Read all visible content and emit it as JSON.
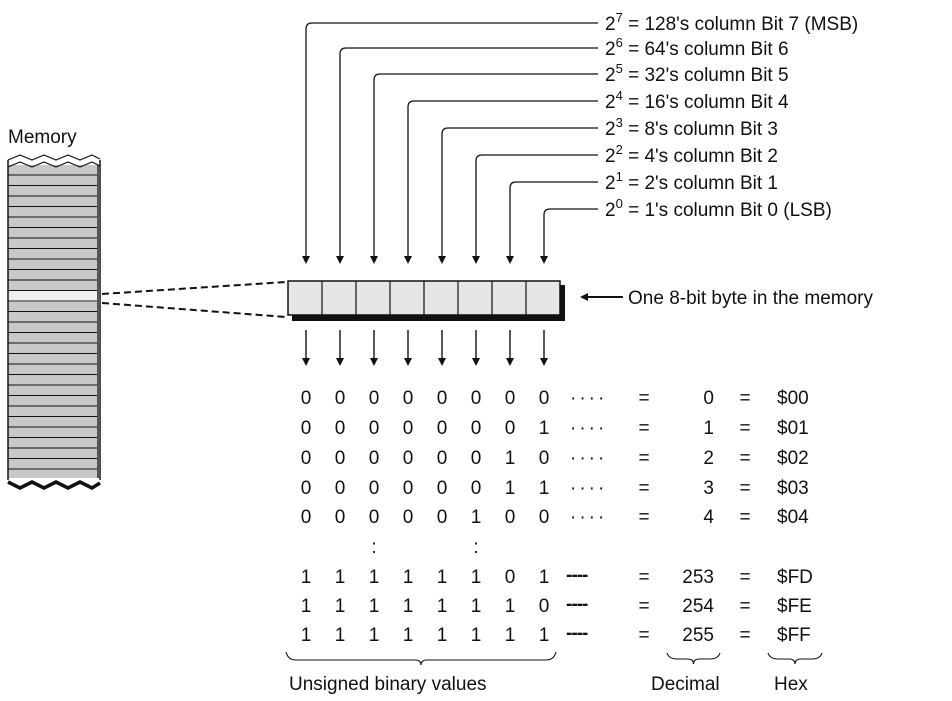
{
  "memory": {
    "title": "Memory"
  },
  "bit_labels": [
    {
      "base": "2",
      "exp": "7",
      "text": "128's column  Bit 7 (MSB)"
    },
    {
      "base": "2",
      "exp": "6",
      "text": "64's column  Bit 6"
    },
    {
      "base": "2",
      "exp": "5",
      "text": "32's column  Bit 5"
    },
    {
      "base": "2",
      "exp": "4",
      "text": "16's column  Bit 4"
    },
    {
      "base": "2",
      "exp": "3",
      "text": "8's column  Bit 3"
    },
    {
      "base": "2",
      "exp": "2",
      "text": "4's column  Bit 2"
    },
    {
      "base": "2",
      "exp": "1",
      "text": "2's column  Bit 1"
    },
    {
      "base": "2",
      "exp": "0",
      "text": "1's column  Bit 0 (LSB)"
    }
  ],
  "byte_label": "One 8-bit byte in the memory",
  "rows": [
    {
      "bits": [
        "0",
        "0",
        "0",
        "0",
        "0",
        "0",
        "0",
        "0"
      ],
      "leader": "····",
      "eq1": "=",
      "decimal": "0",
      "eq2": "=",
      "hex": "$00"
    },
    {
      "bits": [
        "0",
        "0",
        "0",
        "0",
        "0",
        "0",
        "0",
        "1"
      ],
      "leader": "····",
      "eq1": "=",
      "decimal": "1",
      "eq2": "=",
      "hex": "$01"
    },
    {
      "bits": [
        "0",
        "0",
        "0",
        "0",
        "0",
        "0",
        "1",
        "0"
      ],
      "leader": "····",
      "eq1": "=",
      "decimal": "2",
      "eq2": "=",
      "hex": "$02"
    },
    {
      "bits": [
        "0",
        "0",
        "0",
        "0",
        "0",
        "0",
        "1",
        "1"
      ],
      "leader": "····",
      "eq1": "=",
      "decimal": "3",
      "eq2": "=",
      "hex": "$03"
    },
    {
      "bits": [
        "0",
        "0",
        "0",
        "0",
        "0",
        "1",
        "0",
        "0"
      ],
      "leader": "····",
      "eq1": "=",
      "decimal": "4",
      "eq2": "=",
      "hex": "$04"
    },
    {
      "bits": [
        "",
        "",
        "",
        "",
        "",
        "",
        "",
        ""
      ],
      "ellipsis": [
        ":",
        ":"
      ]
    },
    {
      "bits": [
        "1",
        "1",
        "1",
        "1",
        "1",
        "1",
        "0",
        "1"
      ],
      "leader": "----",
      "eq1": "=",
      "decimal": "253",
      "eq2": "=",
      "hex": "$FD"
    },
    {
      "bits": [
        "1",
        "1",
        "1",
        "1",
        "1",
        "1",
        "1",
        "0"
      ],
      "leader": "----",
      "eq1": "=",
      "decimal": "254",
      "eq2": "=",
      "hex": "$FE"
    },
    {
      "bits": [
        "1",
        "1",
        "1",
        "1",
        "1",
        "1",
        "1",
        "1"
      ],
      "leader": "----",
      "eq1": "=",
      "decimal": "255",
      "eq2": "=",
      "hex": "$FF"
    }
  ],
  "footer": {
    "binary_label": "Unsigned binary values",
    "decimal_label": "Decimal",
    "hex_label": "Hex"
  },
  "colors": {
    "cell_fill": "#e6e6e6",
    "memory_fill": "#c8c8c8",
    "highlight_fill": "#efefef",
    "ink": "#111111"
  }
}
